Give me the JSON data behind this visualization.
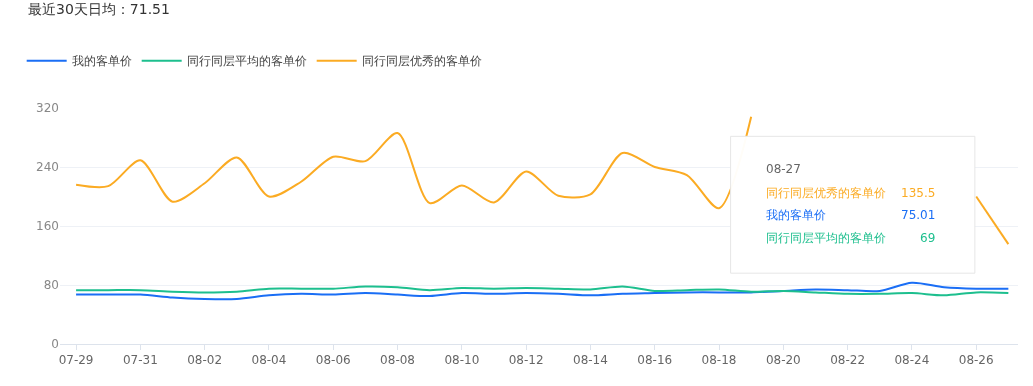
{
  "chart_data": {
    "type": "line",
    "title": "最近30天日均：71.51",
    "categories": [
      "07-29",
      null,
      "07-31",
      null,
      "08-02",
      null,
      "08-04",
      null,
      "08-06",
      null,
      "08-08",
      null,
      "08-10",
      null,
      "08-12",
      null,
      "08-14",
      null,
      "08-16",
      null,
      "08-18",
      null,
      "08-20",
      null,
      "08-22",
      null,
      "08-24",
      null,
      "08-26",
      null
    ],
    "series": [
      {
        "name": "我的客单价",
        "color": "#1a6ef5",
        "values": [
          67,
          67,
          67,
          63,
          61,
          61,
          66,
          68,
          67,
          69,
          67,
          65,
          69,
          68,
          69,
          68,
          66,
          68,
          69,
          70,
          70,
          70,
          72,
          74,
          73,
          72,
          83,
          77,
          75,
          75.01
        ]
      },
      {
        "name": "同行同层平均的客单价",
        "color": "#1dbf8e",
        "values": [
          73,
          73,
          73,
          71,
          70,
          71,
          75,
          75,
          75,
          78,
          77,
          73,
          76,
          75,
          76,
          75,
          74,
          78,
          72,
          73,
          74,
          71,
          72,
          70,
          68,
          68,
          69,
          66,
          70,
          69
        ]
      },
      {
        "name": "同行同层优秀的客单价",
        "color": "#fbab23",
        "values": [
          216,
          214,
          249,
          193,
          218,
          253,
          200,
          220,
          254,
          248,
          286,
          191,
          215,
          192,
          234,
          201,
          203,
          259,
          240,
          229,
          184,
          308,
          null,
          null,
          null,
          null,
          null,
          null,
          200,
          135.5
        ]
      }
    ],
    "ylim": [
      0,
      320
    ],
    "yticks": [
      0,
      80,
      160,
      240,
      320
    ],
    "grid": "y",
    "legend": "top left",
    "marker": "none",
    "line_style": "solid",
    "annotations": [
      "08-27",
      "同行同层优秀的客单价",
      "135.5",
      "我的客单价",
      "75.01",
      "同行同层平均的客单价",
      "69"
    ]
  }
}
